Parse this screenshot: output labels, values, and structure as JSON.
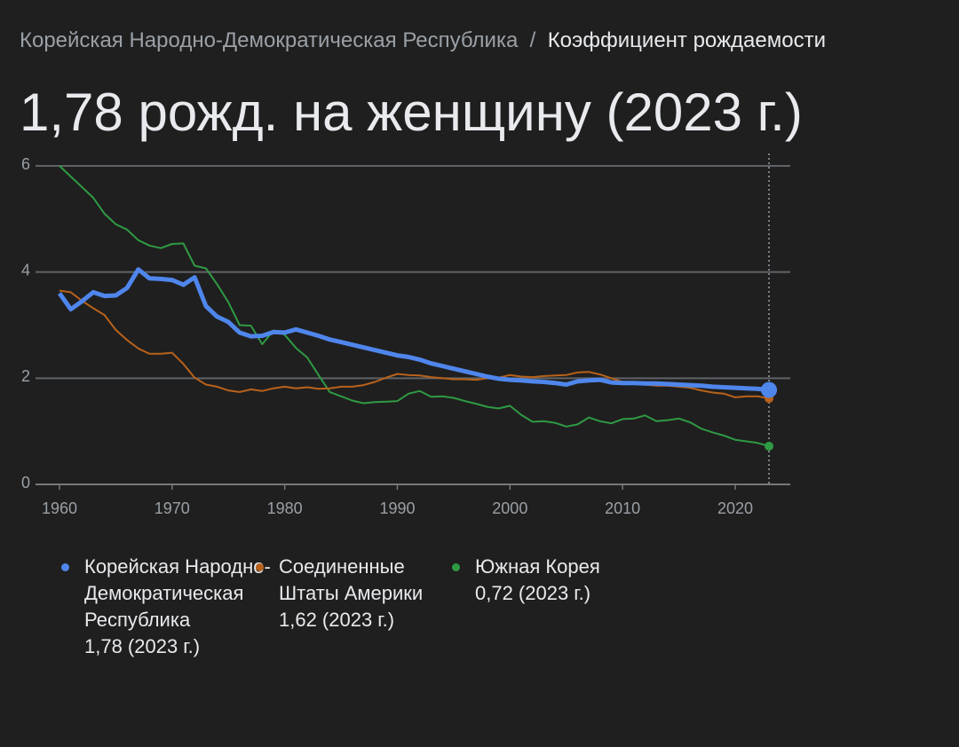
{
  "breadcrumb": [
    "Корейская Народно-Демократическая Республика",
    "Коэффициент рождаемости"
  ],
  "chart_data": {
    "type": "line",
    "title": "1,78 рожд. на женщину (2023 г.)",
    "x": [
      1960,
      1961,
      1962,
      1963,
      1964,
      1965,
      1966,
      1967,
      1968,
      1969,
      1970,
      1971,
      1972,
      1973,
      1974,
      1975,
      1976,
      1977,
      1978,
      1979,
      1980,
      1981,
      1982,
      1983,
      1984,
      1985,
      1986,
      1987,
      1988,
      1989,
      1990,
      1991,
      1992,
      1993,
      1994,
      1995,
      1996,
      1997,
      1998,
      1999,
      2000,
      2001,
      2002,
      2003,
      2004,
      2005,
      2006,
      2007,
      2008,
      2009,
      2010,
      2011,
      2012,
      2013,
      2014,
      2015,
      2016,
      2017,
      2018,
      2019,
      2020,
      2021,
      2022,
      2023
    ],
    "series": [
      {
        "name": "Корейская Народно-Демократическая Республика",
        "latest": "1,78 (2023 г.)",
        "color": "#4f86ec",
        "values": [
          3.6,
          3.3,
          3.45,
          3.62,
          3.55,
          3.56,
          3.7,
          4.05,
          3.88,
          3.87,
          3.85,
          3.76,
          3.9,
          3.36,
          3.16,
          3.06,
          2.86,
          2.79,
          2.8,
          2.87,
          2.86,
          2.92,
          2.86,
          2.8,
          2.73,
          2.68,
          2.63,
          2.58,
          2.53,
          2.48,
          2.43,
          2.4,
          2.35,
          2.28,
          2.23,
          2.18,
          2.13,
          2.08,
          2.03,
          1.99,
          1.97,
          1.96,
          1.94,
          1.93,
          1.91,
          1.88,
          1.94,
          1.96,
          1.97,
          1.92,
          1.91,
          1.91,
          1.9,
          1.9,
          1.89,
          1.88,
          1.87,
          1.86,
          1.84,
          1.83,
          1.82,
          1.81,
          1.8,
          1.78
        ]
      },
      {
        "name": "Соединенные Штаты Америки",
        "latest": "1,62 (2023 г.)",
        "color": "#b8621b",
        "values": [
          3.65,
          3.62,
          3.46,
          3.32,
          3.19,
          2.91,
          2.72,
          2.56,
          2.46,
          2.46,
          2.48,
          2.27,
          2.01,
          1.88,
          1.84,
          1.77,
          1.74,
          1.79,
          1.76,
          1.81,
          1.84,
          1.81,
          1.83,
          1.8,
          1.81,
          1.84,
          1.84,
          1.87,
          1.93,
          2.01,
          2.08,
          2.06,
          2.05,
          2.02,
          2.0,
          1.98,
          1.98,
          1.97,
          2.0,
          2.01,
          2.06,
          2.03,
          2.02,
          2.04,
          2.05,
          2.06,
          2.11,
          2.12,
          2.07,
          2.0,
          1.93,
          1.89,
          1.88,
          1.86,
          1.86,
          1.84,
          1.82,
          1.77,
          1.73,
          1.71,
          1.64,
          1.66,
          1.66,
          1.62
        ]
      },
      {
        "name": "Южная Корея",
        "latest": "0,72 (2023 г.)",
        "color": "#2f9a44",
        "values": [
          6.0,
          5.8,
          5.6,
          5.4,
          5.1,
          4.9,
          4.8,
          4.6,
          4.5,
          4.45,
          4.53,
          4.54,
          4.12,
          4.07,
          3.77,
          3.43,
          3.0,
          2.99,
          2.64,
          2.9,
          2.82,
          2.57,
          2.39,
          2.06,
          1.74,
          1.66,
          1.58,
          1.53,
          1.55,
          1.56,
          1.57,
          1.71,
          1.76,
          1.65,
          1.66,
          1.63,
          1.57,
          1.52,
          1.46,
          1.43,
          1.48,
          1.31,
          1.18,
          1.19,
          1.16,
          1.09,
          1.13,
          1.26,
          1.19,
          1.15,
          1.23,
          1.24,
          1.3,
          1.19,
          1.21,
          1.24,
          1.17,
          1.05,
          0.98,
          0.92,
          0.84,
          0.81,
          0.78,
          0.72
        ]
      }
    ],
    "xlim": [
      1958,
      2025
    ],
    "xticks": [
      1960,
      1970,
      1980,
      1990,
      2000,
      2010,
      2020
    ],
    "ylim": [
      0,
      6
    ],
    "yticks": [
      0,
      2,
      4,
      6
    ],
    "grid": true
  }
}
